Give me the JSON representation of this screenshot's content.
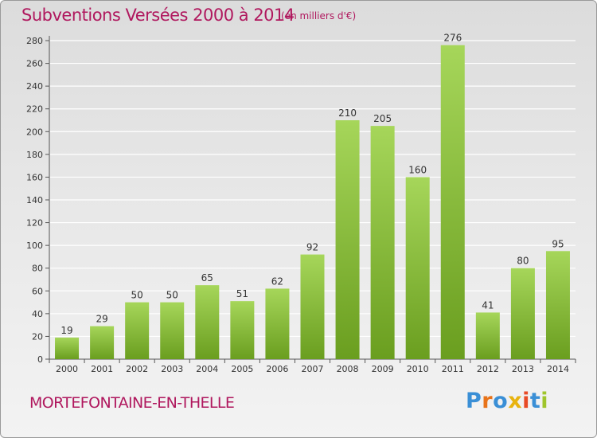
{
  "title": "Subventions Versées 2000 à 2014",
  "unit_note": "(en milliers d'€)",
  "commune": "MORTEFONTAINE-EN-THELLE",
  "logo": {
    "letters": [
      "P",
      "r",
      "o",
      "x",
      "i",
      "t",
      "i"
    ],
    "colors": [
      "#3a8fd6",
      "#e8731a",
      "#3a8fd6",
      "#e8b30f",
      "#e84a26",
      "#3a8fd6",
      "#9fc52c"
    ]
  },
  "colors": {
    "bar_light": "#a6d65a",
    "bar_dark": "#6a9e1f",
    "text": "#b0185e",
    "grid": "#ffffff"
  },
  "chart_data": {
    "type": "bar",
    "categories": [
      "2000",
      "2001",
      "2002",
      "2003",
      "2004",
      "2005",
      "2006",
      "2007",
      "2008",
      "2009",
      "2010",
      "2011",
      "2012",
      "2013",
      "2014"
    ],
    "values": [
      19,
      29,
      50,
      50,
      65,
      51,
      62,
      92,
      210,
      205,
      160,
      276,
      41,
      80,
      95
    ],
    "data_labels": [
      "19",
      "29",
      "50",
      "50",
      "65",
      "51",
      "62",
      "92",
      "210",
      "205",
      "160",
      "276",
      "41",
      "80",
      "95"
    ],
    "y_ticks": [
      0,
      20,
      40,
      60,
      80,
      100,
      120,
      140,
      160,
      180,
      200,
      220,
      240,
      260,
      280
    ],
    "ylim": [
      0,
      280
    ],
    "grid": true,
    "legend": "none"
  }
}
